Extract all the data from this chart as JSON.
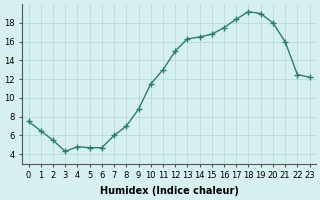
{
  "x": [
    0,
    1,
    2,
    3,
    4,
    5,
    6,
    7,
    8,
    9,
    10,
    11,
    12,
    13,
    14,
    15,
    16,
    17,
    18,
    19,
    20,
    21,
    22,
    23
  ],
  "y": [
    7.5,
    6.5,
    5.5,
    4.3,
    4.8,
    4.7,
    4.7,
    6.0,
    7.0,
    8.8,
    11.5,
    13.0,
    15.0,
    16.3,
    16.5,
    16.8,
    17.5,
    18.4,
    19.2,
    19.0,
    18.0,
    16.0,
    12.5,
    12.2
  ],
  "xlabel": "Humidex (Indice chaleur)",
  "xlim": [
    -0.5,
    23.5
  ],
  "ylim": [
    3,
    20
  ],
  "yticks": [
    4,
    6,
    8,
    10,
    12,
    14,
    16,
    18
  ],
  "xticks": [
    0,
    1,
    2,
    3,
    4,
    5,
    6,
    7,
    8,
    9,
    10,
    11,
    12,
    13,
    14,
    15,
    16,
    17,
    18,
    19,
    20,
    21,
    22,
    23
  ],
  "line_color": "#2d7d6e",
  "marker": "+",
  "bg_color": "#d6f0ef",
  "grid_color": "#b0d8d4",
  "label_fontsize": 7,
  "tick_fontsize": 6
}
